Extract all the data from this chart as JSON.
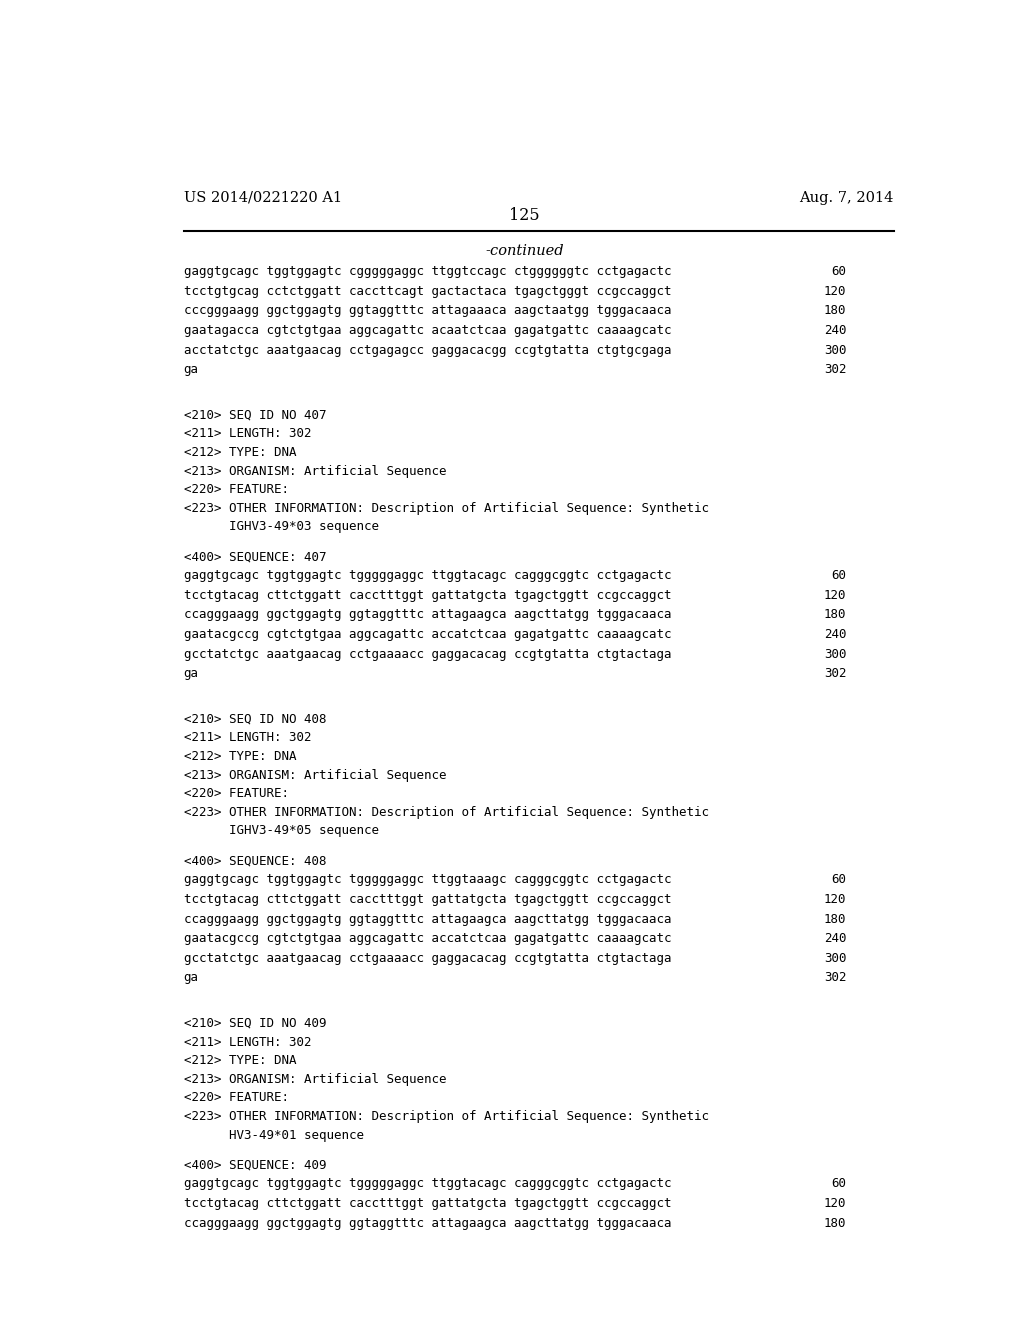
{
  "bg_color": "#ffffff",
  "header_left": "US 2014/0221220 A1",
  "header_right": "Aug. 7, 2014",
  "page_number": "125",
  "continued_label": "-continued",
  "content_blocks": [
    {
      "type": "sequence_lines",
      "lines": [
        [
          "gaggtgcagc tggtggagtc cgggggaggc ttggtccagc ctggggggtc cctgagactc",
          "60"
        ],
        [
          "tcctgtgcag cctctggatt caccttcagt gactactaca tgagctgggt ccgccaggct",
          "120"
        ],
        [
          "cccgggaagg ggctggagtg ggtaggtttc attagaaaca aagctaatgg tgggacaaca",
          "180"
        ],
        [
          "gaatagacca cgtctgtgaa aggcagattc acaatctcaa gagatgattc caaaagcatc",
          "240"
        ],
        [
          "acctatctgc aaatgaacag cctgagagcc gaggacacgg ccgtgtatta ctgtgcgaga",
          "300"
        ],
        [
          "ga",
          "302"
        ]
      ]
    },
    {
      "type": "metadata",
      "lines": [
        "<210> SEQ ID NO 407",
        "<211> LENGTH: 302",
        "<212> TYPE: DNA",
        "<213> ORGANISM: Artificial Sequence",
        "<220> FEATURE:",
        "<223> OTHER INFORMATION: Description of Artificial Sequence: Synthetic",
        "      IGHV3-49*03 sequence"
      ]
    },
    {
      "type": "sequence_label",
      "text": "<400> SEQUENCE: 407"
    },
    {
      "type": "sequence_lines",
      "lines": [
        [
          "gaggtgcagc tggtggagtc tgggggaggc ttggtacagc cagggcggtc cctgagactc",
          "60"
        ],
        [
          "tcctgtacag cttctggatt cacctttggt gattatgcta tgagctggtt ccgccaggct",
          "120"
        ],
        [
          "ccagggaagg ggctggagtg ggtaggtttc attagaagca aagcttatgg tgggacaaca",
          "180"
        ],
        [
          "gaatacgccg cgtctgtgaa aggcagattc accatctcaa gagatgattc caaaagcatc",
          "240"
        ],
        [
          "gcctatctgc aaatgaacag cctgaaaacc gaggacacag ccgtgtatta ctgtactaga",
          "300"
        ],
        [
          "ga",
          "302"
        ]
      ]
    },
    {
      "type": "metadata",
      "lines": [
        "<210> SEQ ID NO 408",
        "<211> LENGTH: 302",
        "<212> TYPE: DNA",
        "<213> ORGANISM: Artificial Sequence",
        "<220> FEATURE:",
        "<223> OTHER INFORMATION: Description of Artificial Sequence: Synthetic",
        "      IGHV3-49*05 sequence"
      ]
    },
    {
      "type": "sequence_label",
      "text": "<400> SEQUENCE: 408"
    },
    {
      "type": "sequence_lines",
      "lines": [
        [
          "gaggtgcagc tggtggagtc tgggggaggc ttggtaaagc cagggcggtc cctgagactc",
          "60"
        ],
        [
          "tcctgtacag cttctggatt cacctttggt gattatgcta tgagctggtt ccgccaggct",
          "120"
        ],
        [
          "ccagggaagg ggctggagtg ggtaggtttc attagaagca aagcttatgg tgggacaaca",
          "180"
        ],
        [
          "gaatacgccg cgtctgtgaa aggcagattc accatctcaa gagatgattc caaaagcatc",
          "240"
        ],
        [
          "gcctatctgc aaatgaacag cctgaaaacc gaggacacag ccgtgtatta ctgtactaga",
          "300"
        ],
        [
          "ga",
          "302"
        ]
      ]
    },
    {
      "type": "metadata",
      "lines": [
        "<210> SEQ ID NO 409",
        "<211> LENGTH: 302",
        "<212> TYPE: DNA",
        "<213> ORGANISM: Artificial Sequence",
        "<220> FEATURE:",
        "<223> OTHER INFORMATION: Description of Artificial Sequence: Synthetic",
        "      HV3-49*01 sequence"
      ]
    },
    {
      "type": "sequence_label",
      "text": "<400> SEQUENCE: 409"
    },
    {
      "type": "sequence_lines",
      "lines": [
        [
          "gaggtgcagc tggtggagtc tgggggaggc ttggtacagc cagggcggtc cctgagactc",
          "60"
        ],
        [
          "tcctgtacag cttctggatt cacctttggt gattatgcta tgagctggtt ccgccaggct",
          "120"
        ],
        [
          "ccagggaagg ggctggagtg ggtaggtttc attagaagca aagcttatgg tgggacaaca",
          "180"
        ]
      ]
    }
  ]
}
